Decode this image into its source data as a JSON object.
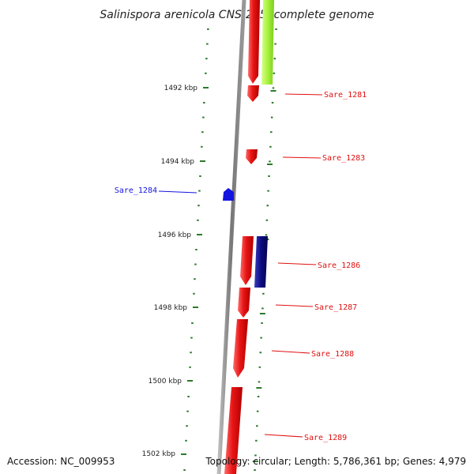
{
  "title": "Salinispora arenicola CNS-205, complete genome",
  "footer": {
    "accession": "Accession: NC_009953",
    "summary": "Topology: circular; Length: 5,786,361 bp; Genes: 4,979"
  },
  "axis_labels": [
    "1492 kbp",
    "1494 kbp",
    "1496 kbp",
    "1498 kbp",
    "1500 kbp",
    "1502 kbp"
  ],
  "genes": [
    {
      "id": "Sare_1281",
      "strand": "plus"
    },
    {
      "id": "Sare_1283",
      "strand": "plus"
    },
    {
      "id": "Sare_1284",
      "strand": "minus"
    },
    {
      "id": "Sare_1286",
      "strand": "plus"
    },
    {
      "id": "Sare_1287",
      "strand": "plus"
    },
    {
      "id": "Sare_1288",
      "strand": "plus"
    },
    {
      "id": "Sare_1289",
      "strand": "plus"
    }
  ],
  "colors": {
    "plus_strand": "#e01010",
    "minus_strand": "#1414e0",
    "dark_feature": "#0c0c80",
    "other_feature": "#a6f23c",
    "tick": "#2d7a2d",
    "backbone": "#888888"
  }
}
